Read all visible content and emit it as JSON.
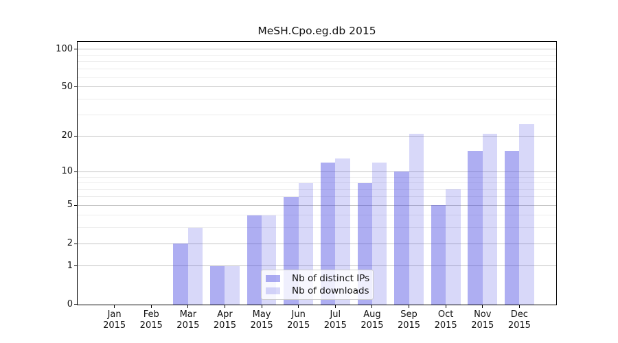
{
  "chart_data": {
    "type": "bar",
    "title": "MeSH.Cpo.eg.db 2015",
    "categories": [
      {
        "month": "Jan",
        "year": "2015"
      },
      {
        "month": "Feb",
        "year": "2015"
      },
      {
        "month": "Mar",
        "year": "2015"
      },
      {
        "month": "Apr",
        "year": "2015"
      },
      {
        "month": "May",
        "year": "2015"
      },
      {
        "month": "Jun",
        "year": "2015"
      },
      {
        "month": "Jul",
        "year": "2015"
      },
      {
        "month": "Aug",
        "year": "2015"
      },
      {
        "month": "Sep",
        "year": "2015"
      },
      {
        "month": "Oct",
        "year": "2015"
      },
      {
        "month": "Nov",
        "year": "2015"
      },
      {
        "month": "Dec",
        "year": "2015"
      }
    ],
    "series": [
      {
        "name": "Nb of distinct IPs",
        "key": "distinct-ips",
        "color": "rgba(62,62,224,0.42)",
        "values": [
          0,
          0,
          2,
          1,
          4,
          6,
          12,
          8,
          10,
          5,
          15,
          15
        ]
      },
      {
        "name": "Nb of downloads",
        "key": "downloads",
        "color": "rgba(62,62,224,0.20)",
        "values": [
          0,
          0,
          3,
          1,
          4,
          8,
          13,
          12,
          21,
          7,
          21,
          25
        ]
      }
    ],
    "xlabel": "",
    "ylabel": "",
    "yscale": "log1p",
    "ylim": [
      0,
      114
    ],
    "yticks_major": [
      0,
      1,
      2,
      5,
      10,
      20,
      50,
      100
    ],
    "yticks_minor": [
      3,
      4,
      6,
      7,
      8,
      9,
      30,
      40,
      60,
      70,
      80,
      90
    ],
    "grid": true,
    "legend_position": "lower-center"
  },
  "colors": {
    "major_grid": "#c3c3c3",
    "minor_grid": "#ececec",
    "spine": "#000000",
    "text": "#111111",
    "legend_border": "#cccccc",
    "legend_background": "rgba(255,255,255,0.8)"
  }
}
